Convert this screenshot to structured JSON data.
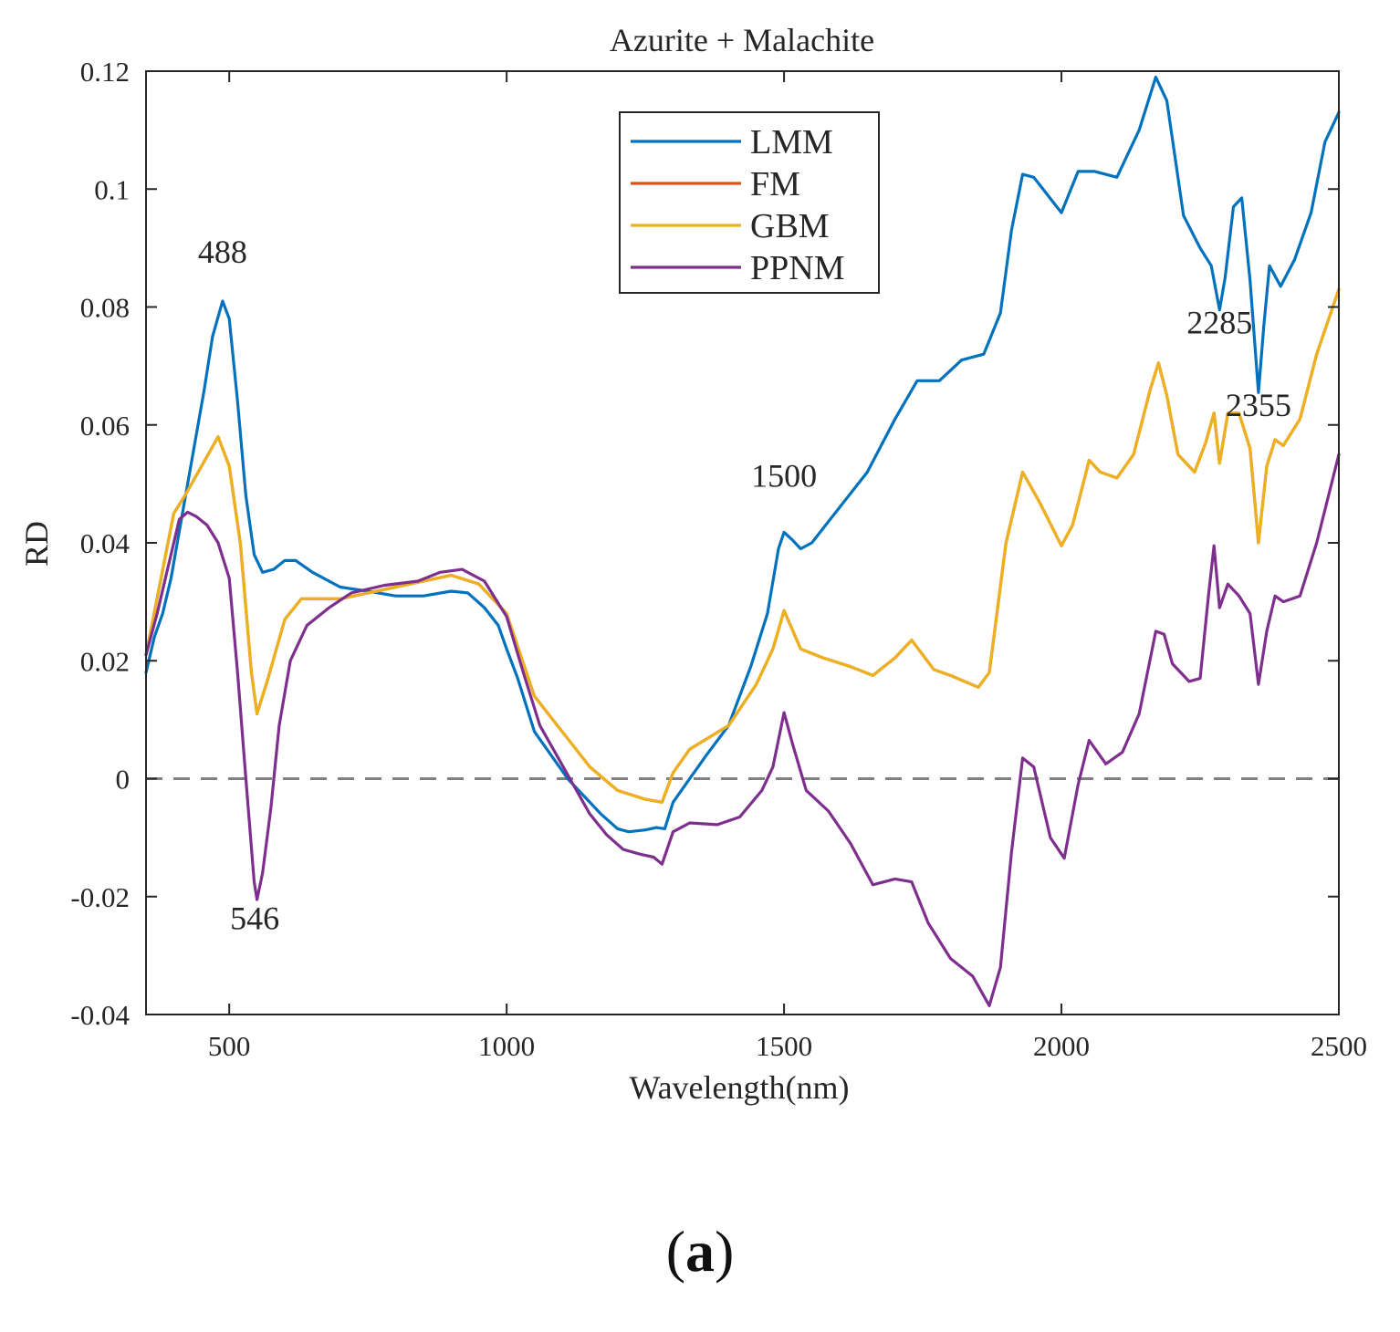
{
  "chart_data": {
    "type": "line",
    "title": "Azurite + Malachite",
    "xlabel": "Wavelength(nm)",
    "ylabel": "RD",
    "xlim": [
      350,
      2500
    ],
    "ylim": [
      -0.04,
      0.12
    ],
    "xticks": [
      500,
      1000,
      1500,
      2000,
      2500
    ],
    "yticks": [
      -0.04,
      -0.02,
      0,
      0.02,
      0.04,
      0.06,
      0.08,
      0.1,
      0.12
    ],
    "xtick_labels": [
      "500",
      "1000",
      "1500",
      "2000",
      "2500"
    ],
    "ytick_labels": [
      "-0.04",
      "-0.02",
      "0",
      "0.02",
      "0.04",
      "0.06",
      "0.08",
      "0.1",
      "0.12"
    ],
    "reference_line": {
      "y": 0,
      "style": "dashed",
      "color": "#808080"
    },
    "legend_position": "top-center",
    "series": [
      {
        "name": "LMM",
        "color": "#0072BD",
        "points": [
          [
            350,
            0.018
          ],
          [
            365,
            0.024
          ],
          [
            380,
            0.028
          ],
          [
            395,
            0.034
          ],
          [
            410,
            0.042
          ],
          [
            425,
            0.05
          ],
          [
            440,
            0.058
          ],
          [
            455,
            0.066
          ],
          [
            470,
            0.075
          ],
          [
            488,
            0.081
          ],
          [
            500,
            0.078
          ],
          [
            515,
            0.064
          ],
          [
            530,
            0.048
          ],
          [
            545,
            0.038
          ],
          [
            560,
            0.035
          ],
          [
            580,
            0.0355
          ],
          [
            600,
            0.037
          ],
          [
            620,
            0.037
          ],
          [
            650,
            0.035
          ],
          [
            700,
            0.0325
          ],
          [
            750,
            0.0318
          ],
          [
            800,
            0.031
          ],
          [
            850,
            0.031
          ],
          [
            900,
            0.0318
          ],
          [
            930,
            0.0315
          ],
          [
            960,
            0.029
          ],
          [
            985,
            0.026
          ],
          [
            1000,
            0.022
          ],
          [
            1020,
            0.017
          ],
          [
            1050,
            0.008
          ],
          [
            1080,
            0.004
          ],
          [
            1110,
            0.0
          ],
          [
            1140,
            -0.003
          ],
          [
            1170,
            -0.006
          ],
          [
            1200,
            -0.0085
          ],
          [
            1220,
            -0.009
          ],
          [
            1250,
            -0.0087
          ],
          [
            1270,
            -0.0083
          ],
          [
            1285,
            -0.0085
          ],
          [
            1300,
            -0.004
          ],
          [
            1330,
            0.0
          ],
          [
            1360,
            0.004
          ],
          [
            1400,
            0.009
          ],
          [
            1440,
            0.019
          ],
          [
            1470,
            0.028
          ],
          [
            1490,
            0.039
          ],
          [
            1500,
            0.0418
          ],
          [
            1515,
            0.0405
          ],
          [
            1530,
            0.039
          ],
          [
            1550,
            0.04
          ],
          [
            1600,
            0.046
          ],
          [
            1650,
            0.052
          ],
          [
            1700,
            0.061
          ],
          [
            1740,
            0.0675
          ],
          [
            1780,
            0.0675
          ],
          [
            1820,
            0.071
          ],
          [
            1860,
            0.072
          ],
          [
            1890,
            0.079
          ],
          [
            1910,
            0.093
          ],
          [
            1930,
            0.1025
          ],
          [
            1950,
            0.102
          ],
          [
            2000,
            0.096
          ],
          [
            2030,
            0.103
          ],
          [
            2060,
            0.103
          ],
          [
            2100,
            0.102
          ],
          [
            2140,
            0.11
          ],
          [
            2170,
            0.119
          ],
          [
            2190,
            0.115
          ],
          [
            2220,
            0.0955
          ],
          [
            2250,
            0.09
          ],
          [
            2270,
            0.087
          ],
          [
            2285,
            0.0795
          ],
          [
            2295,
            0.085
          ],
          [
            2310,
            0.097
          ],
          [
            2325,
            0.0985
          ],
          [
            2340,
            0.0845
          ],
          [
            2355,
            0.0655
          ],
          [
            2365,
            0.077
          ],
          [
            2375,
            0.087
          ],
          [
            2395,
            0.0835
          ],
          [
            2420,
            0.088
          ],
          [
            2450,
            0.096
          ],
          [
            2475,
            0.108
          ],
          [
            2500,
            0.113
          ]
        ]
      },
      {
        "name": "FM",
        "color": "#D95319",
        "points": [
          [
            350,
            0.021
          ],
          [
            400,
            0.045
          ],
          [
            420,
            0.048
          ],
          [
            450,
            0.053
          ],
          [
            480,
            0.058
          ],
          [
            500,
            0.053
          ],
          [
            520,
            0.04
          ],
          [
            540,
            0.018
          ],
          [
            550,
            0.011
          ],
          [
            570,
            0.017
          ],
          [
            600,
            0.027
          ],
          [
            630,
            0.0305
          ],
          [
            700,
            0.0305
          ],
          [
            800,
            0.0325
          ],
          [
            900,
            0.0345
          ],
          [
            950,
            0.033
          ],
          [
            1000,
            0.028
          ],
          [
            1050,
            0.014
          ],
          [
            1100,
            0.008
          ],
          [
            1150,
            0.002
          ],
          [
            1200,
            -0.002
          ],
          [
            1250,
            -0.0035
          ],
          [
            1280,
            -0.004
          ],
          [
            1300,
            0.001
          ],
          [
            1330,
            0.005
          ],
          [
            1400,
            0.009
          ],
          [
            1450,
            0.016
          ],
          [
            1480,
            0.022
          ],
          [
            1500,
            0.0285
          ],
          [
            1530,
            0.022
          ],
          [
            1570,
            0.0205
          ],
          [
            1620,
            0.019
          ],
          [
            1660,
            0.0175
          ],
          [
            1700,
            0.0205
          ],
          [
            1730,
            0.0235
          ],
          [
            1770,
            0.0185
          ],
          [
            1800,
            0.0175
          ],
          [
            1850,
            0.0155
          ],
          [
            1870,
            0.018
          ],
          [
            1900,
            0.04
          ],
          [
            1930,
            0.052
          ],
          [
            1960,
            0.047
          ],
          [
            2000,
            0.0395
          ],
          [
            2020,
            0.043
          ],
          [
            2050,
            0.054
          ],
          [
            2070,
            0.052
          ],
          [
            2100,
            0.051
          ],
          [
            2130,
            0.055
          ],
          [
            2160,
            0.066
          ],
          [
            2175,
            0.0705
          ],
          [
            2190,
            0.065
          ],
          [
            2210,
            0.055
          ],
          [
            2240,
            0.052
          ],
          [
            2260,
            0.057
          ],
          [
            2275,
            0.062
          ],
          [
            2285,
            0.0535
          ],
          [
            2300,
            0.062
          ],
          [
            2320,
            0.062
          ],
          [
            2340,
            0.056
          ],
          [
            2355,
            0.04
          ],
          [
            2370,
            0.053
          ],
          [
            2385,
            0.0575
          ],
          [
            2400,
            0.0565
          ],
          [
            2430,
            0.061
          ],
          [
            2460,
            0.072
          ],
          [
            2500,
            0.083
          ]
        ]
      },
      {
        "name": "GBM",
        "color": "#EDB120",
        "points": [
          [
            350,
            0.021
          ],
          [
            400,
            0.045
          ],
          [
            420,
            0.048
          ],
          [
            450,
            0.053
          ],
          [
            480,
            0.058
          ],
          [
            500,
            0.053
          ],
          [
            520,
            0.04
          ],
          [
            540,
            0.018
          ],
          [
            550,
            0.011
          ],
          [
            570,
            0.017
          ],
          [
            600,
            0.027
          ],
          [
            630,
            0.0305
          ],
          [
            700,
            0.0305
          ],
          [
            800,
            0.0325
          ],
          [
            900,
            0.0345
          ],
          [
            950,
            0.033
          ],
          [
            1000,
            0.028
          ],
          [
            1050,
            0.014
          ],
          [
            1100,
            0.008
          ],
          [
            1150,
            0.002
          ],
          [
            1200,
            -0.002
          ],
          [
            1250,
            -0.0035
          ],
          [
            1280,
            -0.004
          ],
          [
            1300,
            0.001
          ],
          [
            1330,
            0.005
          ],
          [
            1400,
            0.009
          ],
          [
            1450,
            0.016
          ],
          [
            1480,
            0.022
          ],
          [
            1500,
            0.0285
          ],
          [
            1530,
            0.022
          ],
          [
            1570,
            0.0205
          ],
          [
            1620,
            0.019
          ],
          [
            1660,
            0.0175
          ],
          [
            1700,
            0.0205
          ],
          [
            1730,
            0.0235
          ],
          [
            1770,
            0.0185
          ],
          [
            1800,
            0.0175
          ],
          [
            1850,
            0.0155
          ],
          [
            1870,
            0.018
          ],
          [
            1900,
            0.04
          ],
          [
            1930,
            0.052
          ],
          [
            1960,
            0.047
          ],
          [
            2000,
            0.0395
          ],
          [
            2020,
            0.043
          ],
          [
            2050,
            0.054
          ],
          [
            2070,
            0.052
          ],
          [
            2100,
            0.051
          ],
          [
            2130,
            0.055
          ],
          [
            2160,
            0.066
          ],
          [
            2175,
            0.0705
          ],
          [
            2190,
            0.065
          ],
          [
            2210,
            0.055
          ],
          [
            2240,
            0.052
          ],
          [
            2260,
            0.057
          ],
          [
            2275,
            0.062
          ],
          [
            2285,
            0.0535
          ],
          [
            2300,
            0.062
          ],
          [
            2320,
            0.062
          ],
          [
            2340,
            0.056
          ],
          [
            2355,
            0.04
          ],
          [
            2370,
            0.053
          ],
          [
            2385,
            0.0575
          ],
          [
            2400,
            0.0565
          ],
          [
            2430,
            0.061
          ],
          [
            2460,
            0.072
          ],
          [
            2500,
            0.083
          ]
        ]
      },
      {
        "name": "PPNM",
        "color": "#7E2F8E",
        "points": [
          [
            350,
            0.021
          ],
          [
            370,
            0.028
          ],
          [
            390,
            0.036
          ],
          [
            410,
            0.044
          ],
          [
            425,
            0.0452
          ],
          [
            440,
            0.0445
          ],
          [
            460,
            0.043
          ],
          [
            480,
            0.04
          ],
          [
            500,
            0.034
          ],
          [
            515,
            0.018
          ],
          [
            530,
            0.0
          ],
          [
            545,
            -0.0175
          ],
          [
            550,
            -0.0205
          ],
          [
            560,
            -0.016
          ],
          [
            575,
            -0.005
          ],
          [
            590,
            0.009
          ],
          [
            610,
            0.02
          ],
          [
            640,
            0.026
          ],
          [
            680,
            0.029
          ],
          [
            720,
            0.0315
          ],
          [
            780,
            0.0328
          ],
          [
            840,
            0.0335
          ],
          [
            880,
            0.035
          ],
          [
            920,
            0.0355
          ],
          [
            960,
            0.0335
          ],
          [
            1000,
            0.0275
          ],
          [
            1030,
            0.018
          ],
          [
            1060,
            0.009
          ],
          [
            1090,
            0.004
          ],
          [
            1120,
            -0.001
          ],
          [
            1150,
            -0.006
          ],
          [
            1180,
            -0.0095
          ],
          [
            1210,
            -0.012
          ],
          [
            1240,
            -0.0128
          ],
          [
            1265,
            -0.0133
          ],
          [
            1280,
            -0.0145
          ],
          [
            1300,
            -0.009
          ],
          [
            1330,
            -0.0075
          ],
          [
            1380,
            -0.0078
          ],
          [
            1420,
            -0.0065
          ],
          [
            1460,
            -0.002
          ],
          [
            1480,
            0.002
          ],
          [
            1500,
            0.0112
          ],
          [
            1515,
            0.006
          ],
          [
            1540,
            -0.002
          ],
          [
            1580,
            -0.0055
          ],
          [
            1620,
            -0.011
          ],
          [
            1660,
            -0.018
          ],
          [
            1700,
            -0.017
          ],
          [
            1730,
            -0.0175
          ],
          [
            1760,
            -0.0245
          ],
          [
            1800,
            -0.0305
          ],
          [
            1840,
            -0.0335
          ],
          [
            1870,
            -0.0385
          ],
          [
            1890,
            -0.032
          ],
          [
            1910,
            -0.0125
          ],
          [
            1930,
            0.0035
          ],
          [
            1950,
            0.002
          ],
          [
            1980,
            -0.01
          ],
          [
            2005,
            -0.0135
          ],
          [
            2030,
            -0.001
          ],
          [
            2050,
            0.0065
          ],
          [
            2080,
            0.0025
          ],
          [
            2110,
            0.0045
          ],
          [
            2140,
            0.011
          ],
          [
            2170,
            0.025
          ],
          [
            2185,
            0.0245
          ],
          [
            2200,
            0.0195
          ],
          [
            2230,
            0.0165
          ],
          [
            2250,
            0.017
          ],
          [
            2265,
            0.031
          ],
          [
            2275,
            0.0395
          ],
          [
            2285,
            0.029
          ],
          [
            2300,
            0.033
          ],
          [
            2320,
            0.031
          ],
          [
            2340,
            0.028
          ],
          [
            2355,
            0.016
          ],
          [
            2370,
            0.025
          ],
          [
            2385,
            0.031
          ],
          [
            2400,
            0.03
          ],
          [
            2430,
            0.031
          ],
          [
            2460,
            0.04
          ],
          [
            2500,
            0.055
          ]
        ]
      }
    ],
    "annotations": [
      {
        "text": "488",
        "x": 488,
        "y": 0.0875
      },
      {
        "text": "546",
        "x": 546,
        "y": -0.0255
      },
      {
        "text": "1500",
        "x": 1500,
        "y": 0.0495
      },
      {
        "text": "2285",
        "x": 2285,
        "y": 0.0755
      },
      {
        "text": "2355",
        "x": 2355,
        "y": 0.0615
      }
    ]
  },
  "panel_label": {
    "open": "(",
    "letter": "a",
    "close": ")"
  }
}
